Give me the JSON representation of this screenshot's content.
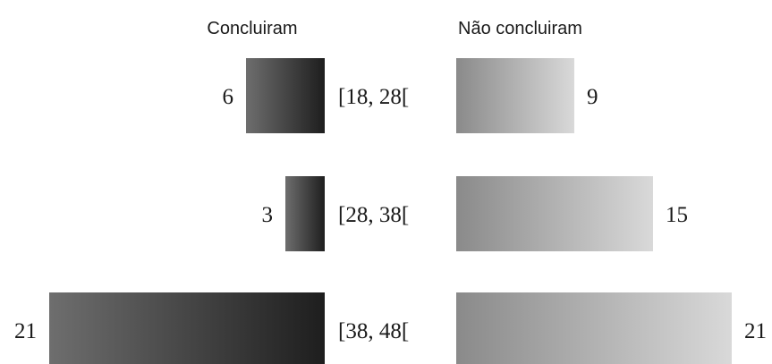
{
  "chart_data": {
    "type": "bar",
    "layout": "back-to-back horizontal bars",
    "categories": [
      "[18, 28[",
      "[28, 38[",
      "[38, 48["
    ],
    "series": [
      {
        "name": "Concluiram",
        "values": [
          6,
          3,
          21
        ],
        "side": "left"
      },
      {
        "name": "Não concluiram",
        "values": [
          9,
          15,
          21
        ],
        "side": "right"
      }
    ],
    "title": "",
    "xlabel": "",
    "ylabel": "",
    "xlim": [
      0,
      21
    ],
    "grid": false,
    "colors": {
      "left_light": "#6e6e6e",
      "left_dark": "#1e1e1e",
      "right_dark": "#8a8a8a",
      "right_light": "#d9d9d9"
    }
  }
}
